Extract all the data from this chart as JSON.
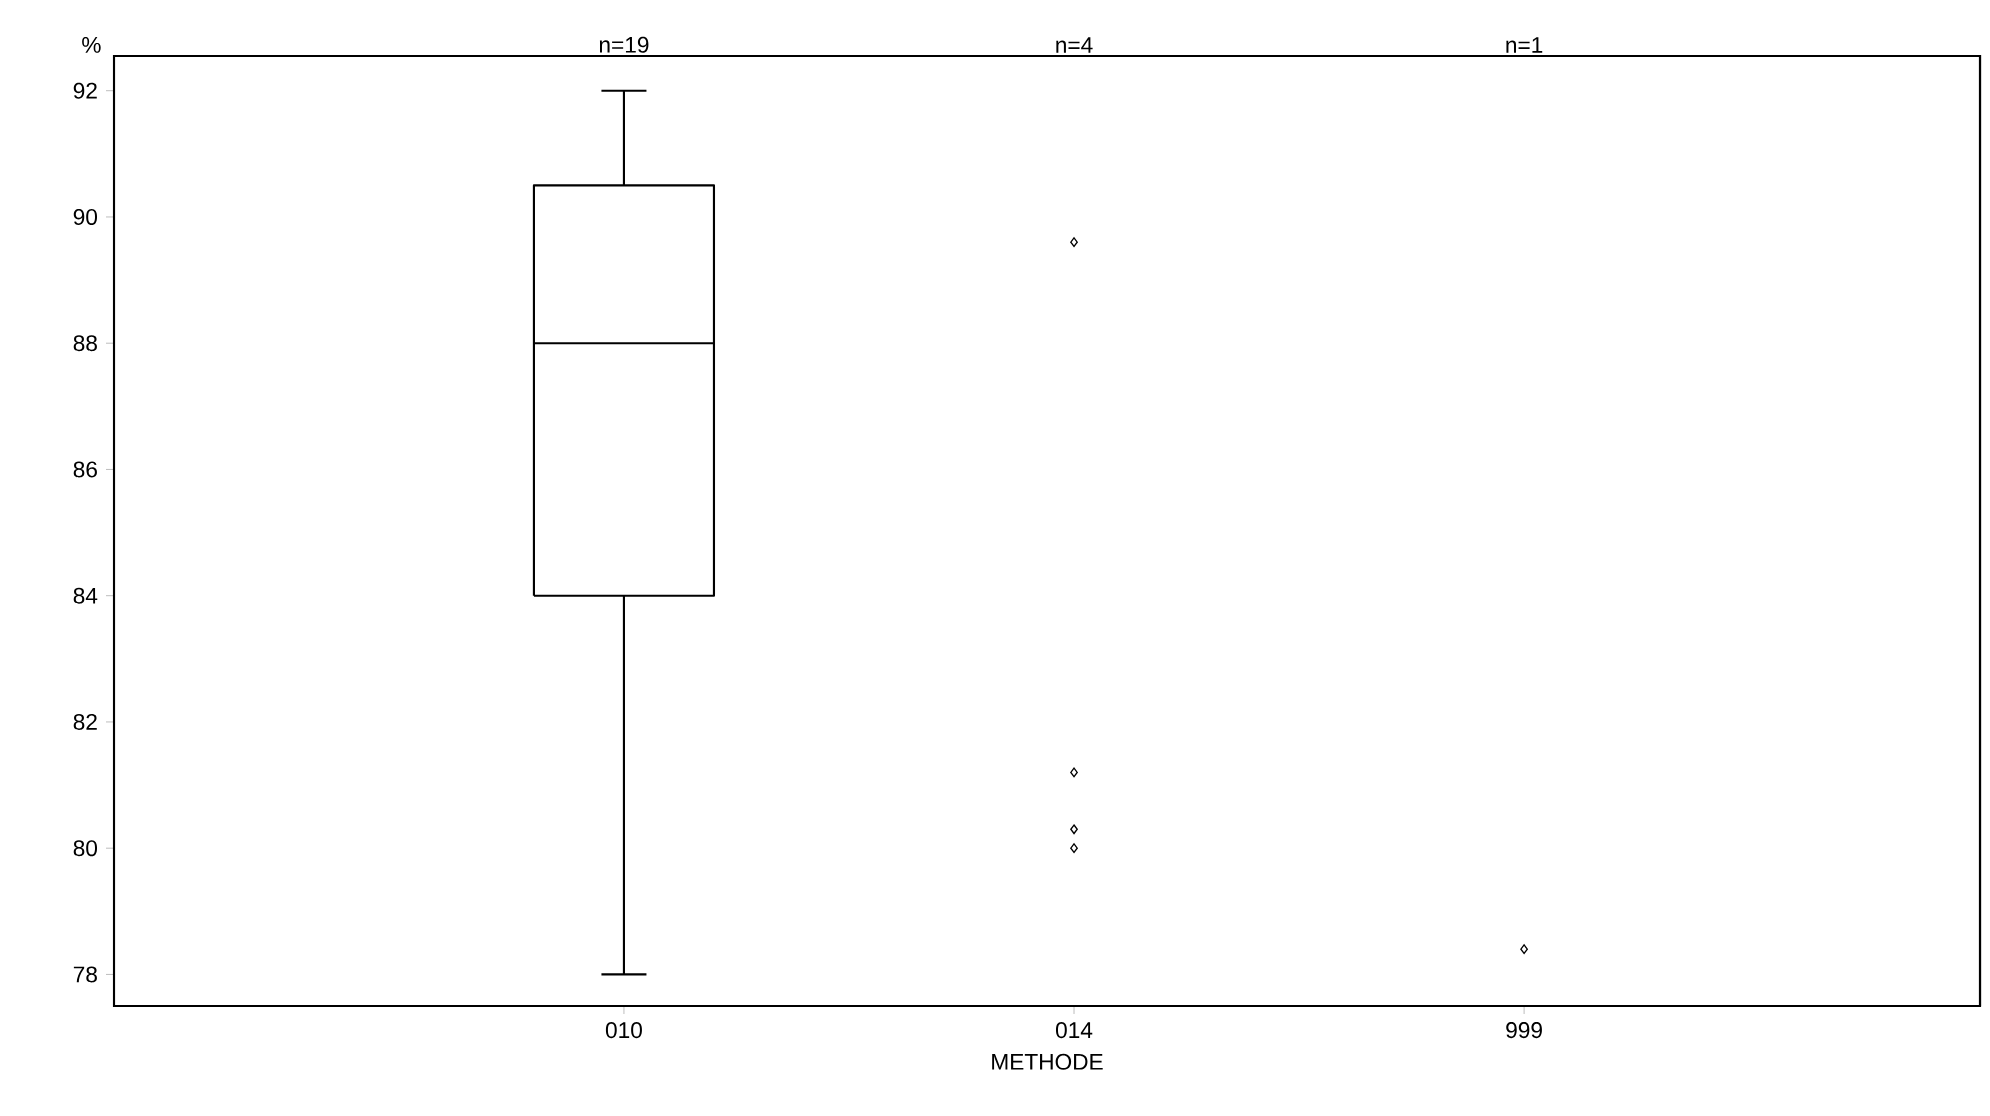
{
  "chart_data": {
    "type": "box",
    "ylabel": "%",
    "xlabel": "METHODE",
    "categories": [
      "010",
      "014",
      "999"
    ],
    "boxes": [
      {
        "low": 78,
        "q1": 84,
        "median": 88,
        "q3": 90.5,
        "high": 92
      },
      null,
      null
    ],
    "series": [
      {
        "type": "scatter",
        "x": [
          "014",
          "014",
          "014",
          "014",
          "999"
        ],
        "values": [
          89.6,
          81.2,
          80.3,
          80.0,
          78.4
        ],
        "marker": "diamond",
        "color": "#000000"
      }
    ],
    "ylim": [
      77.5,
      92.55
    ],
    "yticks": [
      78,
      80,
      82,
      84,
      86,
      88,
      90,
      92
    ],
    "grid": false,
    "annotations": [
      "n=19",
      "n=4",
      "n=1"
    ]
  }
}
